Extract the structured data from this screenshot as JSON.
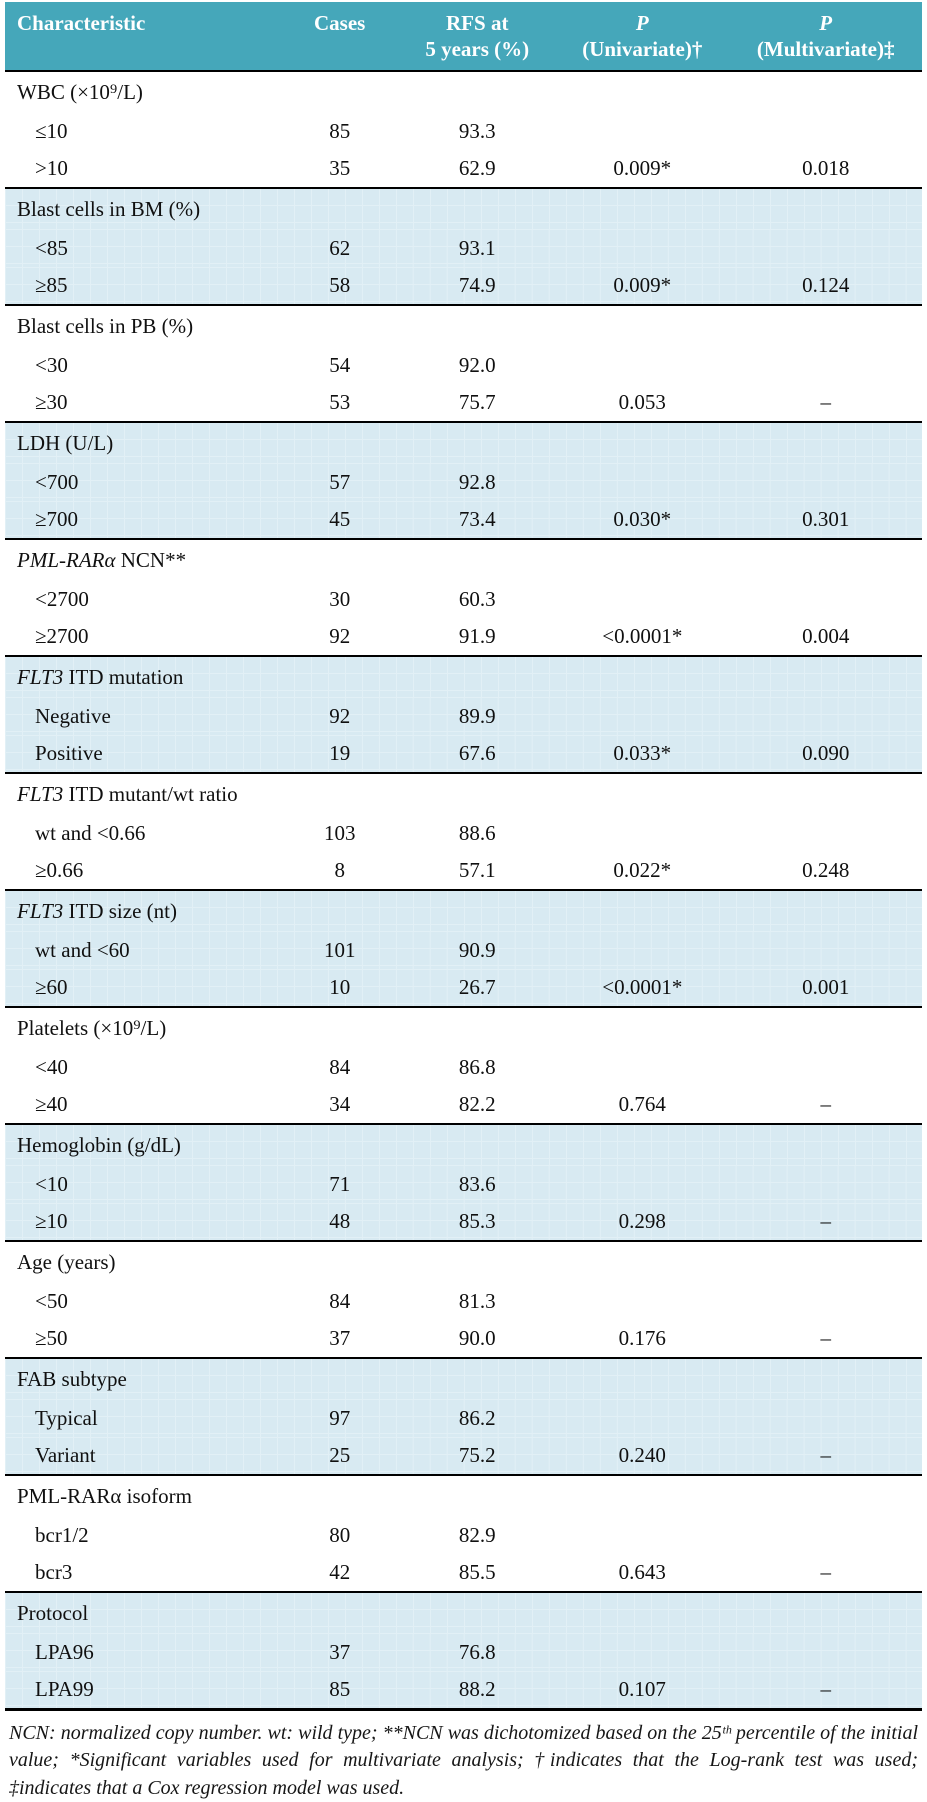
{
  "header": {
    "columns": [
      {
        "lines": [
          "Characteristic"
        ],
        "align": "left",
        "italic_first": false
      },
      {
        "lines": [
          "Cases"
        ],
        "align": "center",
        "italic_first": false
      },
      {
        "lines": [
          "RFS at",
          "5 years (%)"
        ],
        "align": "center",
        "italic_first": false
      },
      {
        "lines": [
          "P",
          "(Univariate)†"
        ],
        "align": "center",
        "italic_first": true
      },
      {
        "lines": [
          "P",
          "(Multivariate)‡"
        ],
        "align": "center",
        "italic_first": true
      }
    ]
  },
  "groups": [
    {
      "label_parts": [
        {
          "text": "WBC (×10⁹/L)",
          "italic": false
        }
      ],
      "rows": [
        {
          "characteristic": "≤10",
          "cases": "85",
          "rfs": "93.3",
          "p_uni": "",
          "p_multi": ""
        },
        {
          "characteristic": ">10",
          "cases": "35",
          "rfs": "62.9",
          "p_uni": "0.009*",
          "p_multi": "0.018"
        }
      ]
    },
    {
      "label_parts": [
        {
          "text": "Blast cells in BM (%)",
          "italic": false
        }
      ],
      "rows": [
        {
          "characteristic": "<85",
          "cases": "62",
          "rfs": "93.1",
          "p_uni": "",
          "p_multi": ""
        },
        {
          "characteristic": "≥85",
          "cases": "58",
          "rfs": "74.9",
          "p_uni": "0.009*",
          "p_multi": "0.124"
        }
      ]
    },
    {
      "label_parts": [
        {
          "text": "Blast cells in PB (%)",
          "italic": false
        }
      ],
      "rows": [
        {
          "characteristic": "<30",
          "cases": "54",
          "rfs": "92.0",
          "p_uni": "",
          "p_multi": ""
        },
        {
          "characteristic": "≥30",
          "cases": "53",
          "rfs": "75.7",
          "p_uni": "0.053",
          "p_multi": "–"
        }
      ]
    },
    {
      "label_parts": [
        {
          "text": "LDH (U/L)",
          "italic": false
        }
      ],
      "rows": [
        {
          "characteristic": "<700",
          "cases": "57",
          "rfs": "92.8",
          "p_uni": "",
          "p_multi": ""
        },
        {
          "characteristic": "≥700",
          "cases": "45",
          "rfs": "73.4",
          "p_uni": "0.030*",
          "p_multi": "0.301"
        }
      ]
    },
    {
      "label_parts": [
        {
          "text": "PML-RARα",
          "italic": true
        },
        {
          "text": " NCN**",
          "italic": false
        }
      ],
      "rows": [
        {
          "characteristic": "<2700",
          "cases": "30",
          "rfs": "60.3",
          "p_uni": "",
          "p_multi": ""
        },
        {
          "characteristic": "≥2700",
          "cases": "92",
          "rfs": "91.9",
          "p_uni": "<0.0001*",
          "p_multi": "0.004"
        }
      ]
    },
    {
      "label_parts": [
        {
          "text": "FLT3",
          "italic": true
        },
        {
          "text": " ITD mutation",
          "italic": false
        }
      ],
      "rows": [
        {
          "characteristic": "Negative",
          "cases": "92",
          "rfs": "89.9",
          "p_uni": "",
          "p_multi": ""
        },
        {
          "characteristic": "Positive",
          "cases": "19",
          "rfs": "67.6",
          "p_uni": "0.033*",
          "p_multi": "0.090"
        }
      ]
    },
    {
      "label_parts": [
        {
          "text": "FLT3",
          "italic": true
        },
        {
          "text": " ITD mutant/wt ratio",
          "italic": false
        }
      ],
      "rows": [
        {
          "characteristic": "wt and <0.66",
          "cases": "103",
          "rfs": "88.6",
          "p_uni": "",
          "p_multi": ""
        },
        {
          "characteristic": "≥0.66",
          "cases": "8",
          "rfs": "57.1",
          "p_uni": "0.022*",
          "p_multi": "0.248"
        }
      ]
    },
    {
      "label_parts": [
        {
          "text": "FLT3",
          "italic": true
        },
        {
          "text": " ITD size (nt)",
          "italic": false
        }
      ],
      "rows": [
        {
          "characteristic": "wt and <60",
          "cases": "101",
          "rfs": "90.9",
          "p_uni": "",
          "p_multi": ""
        },
        {
          "characteristic": "≥60",
          "cases": "10",
          "rfs": "26.7",
          "p_uni": "<0.0001*",
          "p_multi": "0.001"
        }
      ]
    },
    {
      "label_parts": [
        {
          "text": "Platelets (×10⁹/L)",
          "italic": false
        }
      ],
      "rows": [
        {
          "characteristic": "<40",
          "cases": "84",
          "rfs": "86.8",
          "p_uni": "",
          "p_multi": ""
        },
        {
          "characteristic": "≥40",
          "cases": "34",
          "rfs": "82.2",
          "p_uni": "0.764",
          "p_multi": "–"
        }
      ]
    },
    {
      "label_parts": [
        {
          "text": "Hemoglobin (g/dL)",
          "italic": false
        }
      ],
      "rows": [
        {
          "characteristic": "<10",
          "cases": "71",
          "rfs": "83.6",
          "p_uni": "",
          "p_multi": ""
        },
        {
          "characteristic": "≥10",
          "cases": "48",
          "rfs": "85.3",
          "p_uni": "0.298",
          "p_multi": "–"
        }
      ]
    },
    {
      "label_parts": [
        {
          "text": "Age (years)",
          "italic": false
        }
      ],
      "rows": [
        {
          "characteristic": "<50",
          "cases": "84",
          "rfs": "81.3",
          "p_uni": "",
          "p_multi": ""
        },
        {
          "characteristic": "≥50",
          "cases": "37",
          "rfs": "90.0",
          "p_uni": "0.176",
          "p_multi": "–"
        }
      ]
    },
    {
      "label_parts": [
        {
          "text": "FAB subtype",
          "italic": false
        }
      ],
      "rows": [
        {
          "characteristic": "Typical",
          "cases": "97",
          "rfs": "86.2",
          "p_uni": "",
          "p_multi": ""
        },
        {
          "characteristic": "Variant",
          "cases": "25",
          "rfs": "75.2",
          "p_uni": "0.240",
          "p_multi": "–"
        }
      ]
    },
    {
      "label_parts": [
        {
          "text": "PML-RARα isoform",
          "italic": false
        }
      ],
      "rows": [
        {
          "characteristic": "bcr1/2",
          "cases": "80",
          "rfs": "82.9",
          "p_uni": "",
          "p_multi": ""
        },
        {
          "characteristic": "bcr3",
          "cases": "42",
          "rfs": "85.5",
          "p_uni": "0.643",
          "p_multi": "–"
        }
      ]
    },
    {
      "label_parts": [
        {
          "text": "Protocol",
          "italic": false
        }
      ],
      "rows": [
        {
          "characteristic": "LPA96",
          "cases": "37",
          "rfs": "76.8",
          "p_uni": "",
          "p_multi": ""
        },
        {
          "characteristic": "LPA99",
          "cases": "85",
          "rfs": "88.2",
          "p_uni": "0.107",
          "p_multi": "–"
        }
      ]
    }
  ],
  "footnote": "NCN: normalized copy number. wt: wild type; **NCN was dichotomized based on the 25ᵗʰ percentile of the initial value; *Significant variables used for multivariate analysis; †indicates that the Log-rank test was used; ‡indicates that a Cox regression model was used."
}
